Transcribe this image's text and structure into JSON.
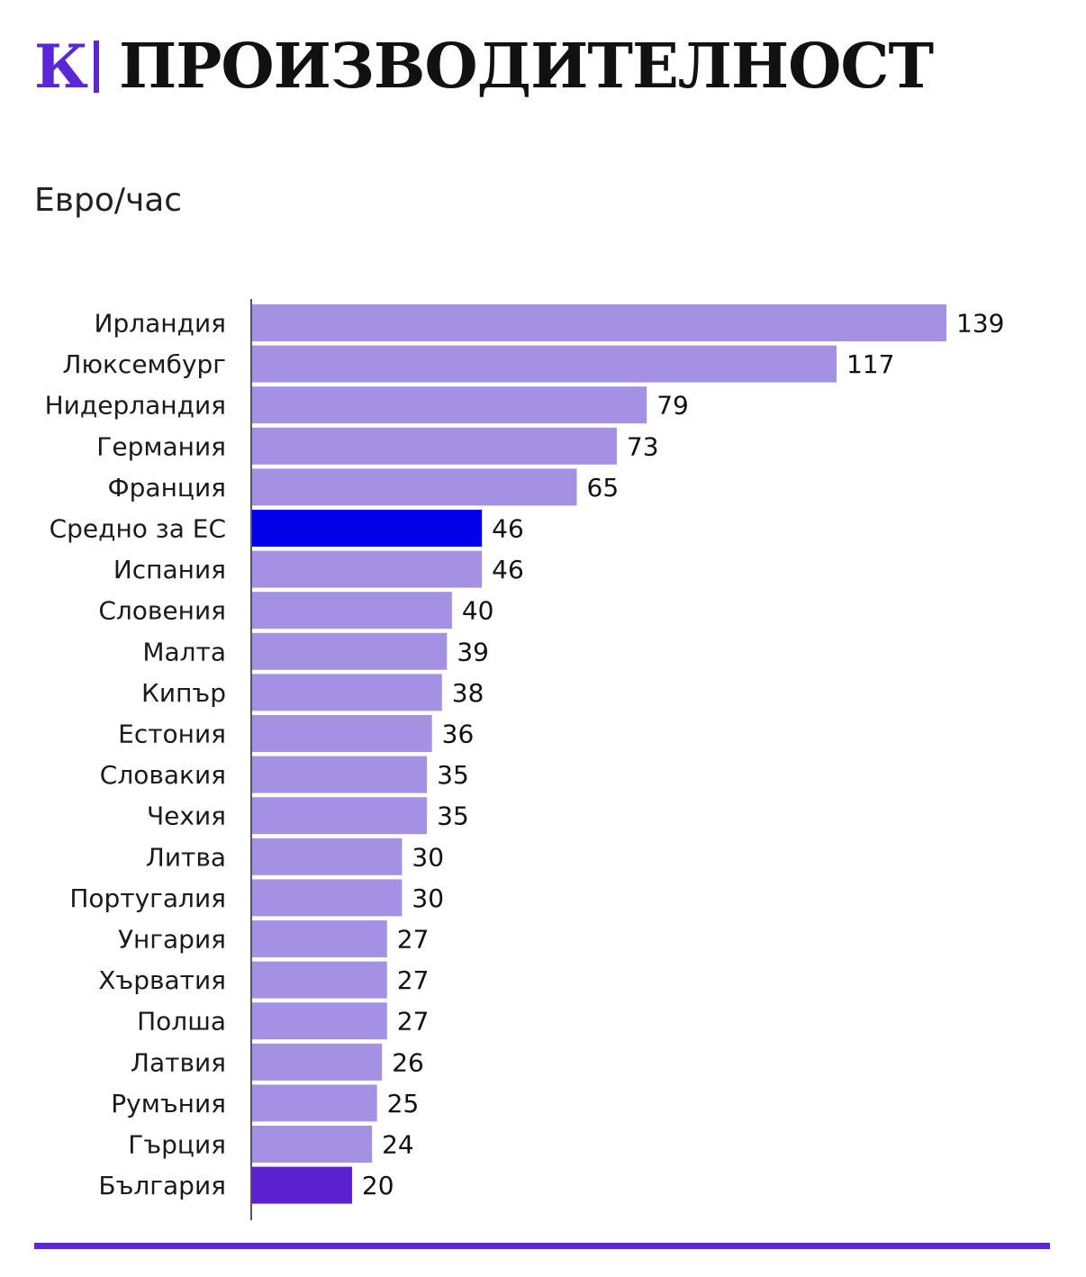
{
  "header": {
    "logo_text": "К",
    "title": "ПРОИЗВОДИТЕЛНОСТ"
  },
  "colors": {
    "accent": "#5b27d6",
    "bar_default": "#a591e3",
    "bar_eu_average": "#0000e6",
    "bar_bulgaria": "#5a1fcf"
  },
  "chart_data": {
    "type": "bar",
    "orientation": "horizontal",
    "title": "ПРОИЗВОДИТЕЛНОСТ",
    "unit_label": "Евро/час",
    "xlim": [
      0,
      145
    ],
    "grid": false,
    "legend": "none",
    "categories": [
      "Ирландия",
      "Люксембург",
      "Нидерландия",
      "Германия",
      "Франция",
      "Средно за ЕС",
      "Испания",
      "Словения",
      "Малта",
      "Кипър",
      "Естония",
      "Словакия",
      "Чехия",
      "Литва",
      "Португалия",
      "Унгария",
      "Хърватия",
      "Полша",
      "Латвия",
      "Румъния",
      "Гърция",
      "България"
    ],
    "values": [
      139,
      117,
      79,
      73,
      65,
      46,
      46,
      40,
      39,
      38,
      36,
      35,
      35,
      30,
      30,
      27,
      27,
      27,
      26,
      25,
      24,
      20
    ],
    "highlight": {
      "Средно за ЕС": "bar_eu_average",
      "България": "bar_bulgaria"
    }
  }
}
